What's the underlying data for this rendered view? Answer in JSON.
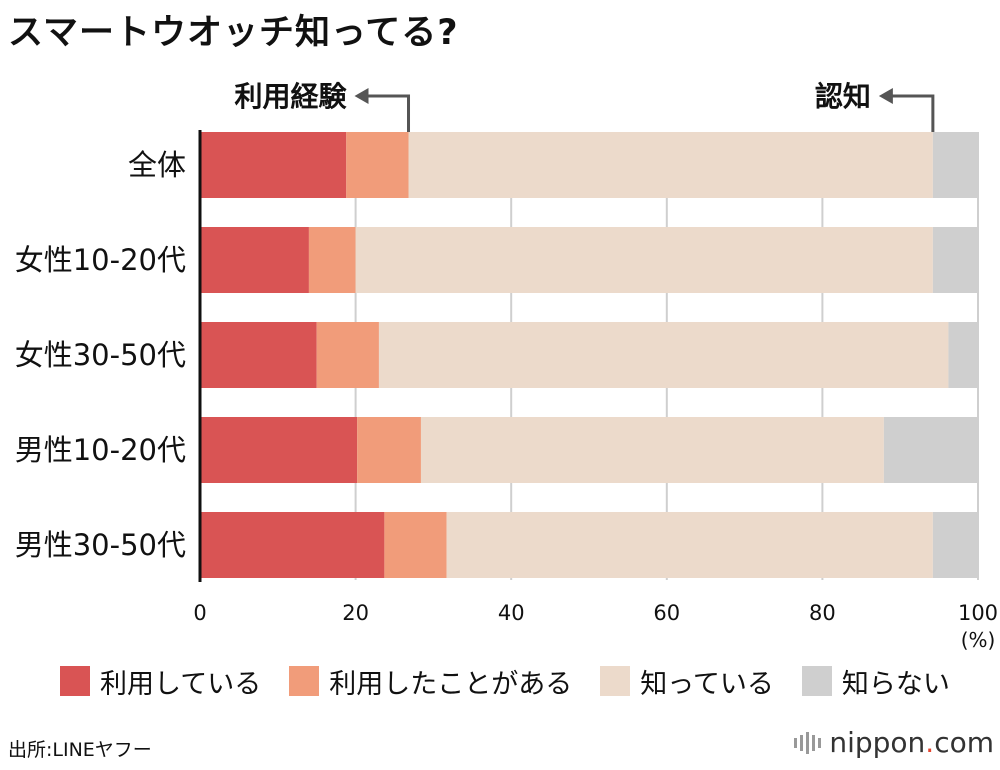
{
  "title": "スマートウオッチ知ってる?",
  "chart_data": {
    "type": "bar",
    "orientation": "horizontal",
    "stacked": true,
    "categories": [
      "全体",
      "女性10-20代",
      "女性30-50代",
      "男性10-20代",
      "男性30-50代"
    ],
    "series": [
      {
        "name": "利用している",
        "color": "#d95454",
        "values": [
          18.8,
          14.0,
          15.0,
          20.2,
          23.7
        ]
      },
      {
        "name": "利用したことがある",
        "color": "#f19c7a",
        "values": [
          8.0,
          6.0,
          8.0,
          8.2,
          8.0
        ]
      },
      {
        "name": "知っている",
        "color": "#ecdacb",
        "values": [
          67.4,
          74.2,
          73.2,
          59.5,
          62.5
        ]
      },
      {
        "name": "知らない",
        "color": "#cfcfcf",
        "values": [
          5.8,
          5.8,
          3.8,
          12.1,
          5.8
        ]
      }
    ],
    "xlim": [
      0,
      100
    ],
    "xticks": [
      "0",
      "20",
      "40",
      "60",
      "80",
      "100"
    ],
    "xunit": "(%)",
    "grid": true,
    "annotations": [
      {
        "text": "利用経験",
        "category": "全体",
        "value": 26.8
      },
      {
        "text": "認知",
        "category": "全体",
        "value": 94.2
      }
    ]
  },
  "legend": [
    {
      "label": "利用している",
      "color": "#d95454"
    },
    {
      "label": "利用したことがある",
      "color": "#f19c7a"
    },
    {
      "label": "知っている",
      "color": "#ecdacb"
    },
    {
      "label": "知らない",
      "color": "#cfcfcf"
    }
  ],
  "source": "出所:LINEヤフー",
  "brand": {
    "name": "nippon",
    "dot": ".",
    "suffix": "com"
  }
}
